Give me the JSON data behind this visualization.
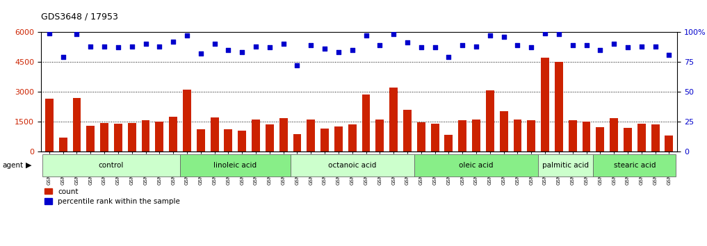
{
  "title": "GDS3648 / 17953",
  "categories": [
    "GSM525196",
    "GSM525197",
    "GSM525198",
    "GSM525199",
    "GSM525200",
    "GSM525201",
    "GSM525202",
    "GSM525203",
    "GSM525204",
    "GSM525205",
    "GSM525206",
    "GSM525207",
    "GSM525208",
    "GSM525209",
    "GSM525210",
    "GSM525211",
    "GSM525212",
    "GSM525213",
    "GSM525214",
    "GSM525215",
    "GSM525216",
    "GSM525217",
    "GSM525218",
    "GSM525219",
    "GSM525220",
    "GSM525221",
    "GSM525222",
    "GSM525223",
    "GSM525224",
    "GSM525225",
    "GSM525226",
    "GSM525227",
    "GSM525228",
    "GSM525229",
    "GSM525230",
    "GSM525231",
    "GSM525232",
    "GSM525233",
    "GSM525234",
    "GSM525235",
    "GSM525236",
    "GSM525237",
    "GSM525238",
    "GSM525239",
    "GSM525240",
    "GSM525241"
  ],
  "bar_values": [
    2650,
    700,
    2680,
    1300,
    1430,
    1380,
    1420,
    1550,
    1500,
    1750,
    3100,
    1100,
    1700,
    1100,
    1050,
    1600,
    1350,
    1650,
    850,
    1580,
    1150,
    1250,
    1350,
    2850,
    1600,
    3200,
    2100,
    1450,
    1400,
    820,
    1570,
    1600,
    3050,
    2000,
    1580,
    1570,
    4700,
    4500,
    1570,
    1500,
    1200,
    1650,
    1180,
    1380,
    1370,
    800
  ],
  "dot_values": [
    99,
    79,
    98,
    88,
    88,
    87,
    88,
    90,
    88,
    92,
    97,
    82,
    90,
    85,
    83,
    88,
    87,
    90,
    72,
    89,
    86,
    83,
    85,
    97,
    89,
    98,
    91,
    87,
    87,
    79,
    89,
    88,
    97,
    96,
    89,
    87,
    99,
    98,
    89,
    89,
    85,
    90,
    87,
    88,
    88,
    81
  ],
  "groups": [
    {
      "label": "control",
      "start": 0,
      "end": 10,
      "color": "#ccffcc"
    },
    {
      "label": "linoleic acid",
      "start": 10,
      "end": 18,
      "color": "#88ee88"
    },
    {
      "label": "octanoic acid",
      "start": 18,
      "end": 27,
      "color": "#ccffcc"
    },
    {
      "label": "oleic acid",
      "start": 27,
      "end": 36,
      "color": "#88ee88"
    },
    {
      "label": "palmitic acid",
      "start": 36,
      "end": 40,
      "color": "#ccffcc"
    },
    {
      "label": "stearic acid",
      "start": 40,
      "end": 46,
      "color": "#88ee88"
    }
  ],
  "bar_color": "#cc2200",
  "dot_color": "#0000cc",
  "left_ylim": [
    0,
    6000
  ],
  "right_ylim": [
    0,
    100
  ],
  "left_yticks": [
    0,
    1500,
    3000,
    4500,
    6000
  ],
  "right_yticks": [
    0,
    25,
    50,
    75,
    100
  ],
  "right_yticklabels": [
    "0",
    "25",
    "50",
    "75",
    "100%"
  ],
  "background_color": "#ffffff",
  "grid_color": "#000000",
  "dot_marker_size": 18
}
